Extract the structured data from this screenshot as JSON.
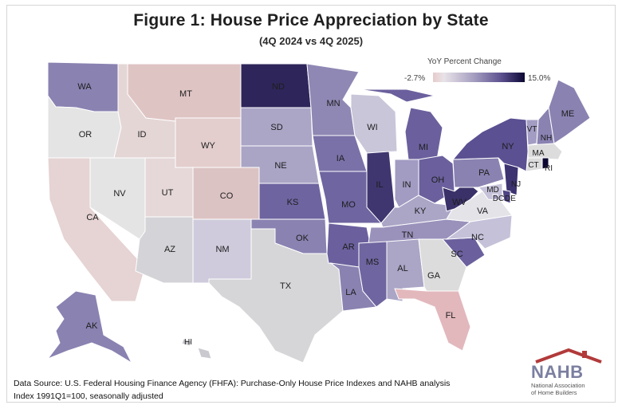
{
  "title": "Figure 1: House Price Appreciation by State",
  "subtitle": "(4Q 2024 vs 4Q 2025)",
  "legend": {
    "title": "YoY Percent Change",
    "min_label": "-2.7%",
    "max_label": "15.0%",
    "min": -2.7,
    "max": 15.0
  },
  "source_lines": [
    "Data Source: U.S. Federal Housing Finance Agency (FHFA): Purchase-Only House Price Indexes and NAHB analysis",
    "Index 1991Q1=100, seasonally adjusted"
  ],
  "logo": {
    "name": "NAHB",
    "line1": "National Association",
    "line2": "of Home Builders"
  },
  "colors": {
    "negative": "#e3cccc",
    "neutral": "#dcdcdc",
    "low": "#b8b3cd",
    "mid": "#8a82b1",
    "high": "#6b609d",
    "top": "#2c2457"
  },
  "states": {
    "WA": "WA",
    "OR": "OR",
    "CA": "CA",
    "ID": "ID",
    "NV": "NV",
    "MT": "MT",
    "WY": "WY",
    "UT": "UT",
    "AZ": "AZ",
    "CO": "CO",
    "NM": "NM",
    "ND": "ND",
    "SD": "SD",
    "NE": "NE",
    "KS": "KS",
    "OK": "OK",
    "TX": "TX",
    "MN": "MN",
    "IA": "IA",
    "MO": "MO",
    "AR": "AR",
    "LA": "LA",
    "WI": "WI",
    "IL": "IL",
    "MI": "MI",
    "IN": "IN",
    "OH": "OH",
    "KY": "KY",
    "TN": "TN",
    "MS": "MS",
    "AL": "AL",
    "GA": "GA",
    "FL": "FL",
    "SC": "SC",
    "NC": "NC",
    "VA": "VA",
    "WV": "WV",
    "PA": "PA",
    "NY": "NY",
    "VT": "VT",
    "NH": "NH",
    "ME": "ME",
    "MA": "MA",
    "CT": "CT",
    "RI": "RI",
    "NJ": "NJ",
    "DE": "DE",
    "MD": "MD",
    "DC": "DC",
    "AK": "AK",
    "HI": "HI"
  }
}
